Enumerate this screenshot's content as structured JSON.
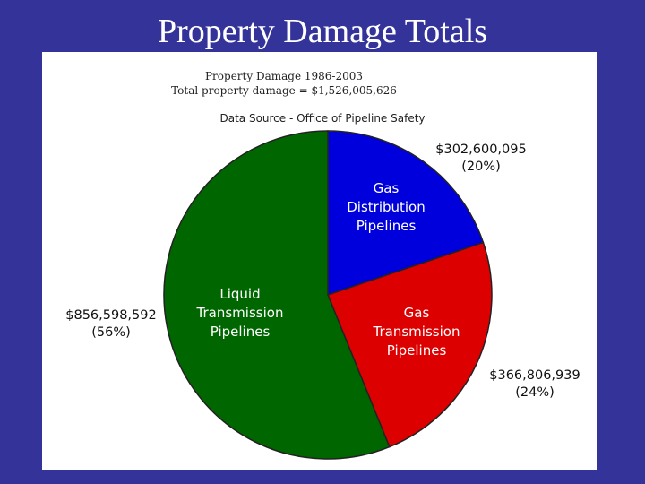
{
  "slide": {
    "title": "Property Damage Totals"
  },
  "chart_data": {
    "type": "pie",
    "header_lines": [
      "Property Damage 1986-2003",
      "Total property damage = $1,526,005,626"
    ],
    "source": "Data Source - Office of Pipeline Safety",
    "slices": [
      {
        "label_lines": [
          "Gas",
          "Distribution",
          "Pipelines"
        ],
        "value": 302600095,
        "value_text": "$302,600,095",
        "percent_text": "(20%)",
        "color": "#0000dd"
      },
      {
        "label_lines": [
          "Gas",
          "Transmission",
          "Pipelines"
        ],
        "value": 366806939,
        "value_text": "$366,806,939",
        "percent_text": "(24%)",
        "color": "#dd0000"
      },
      {
        "label_lines": [
          "Liquid",
          "Transmission",
          "Pipelines"
        ],
        "value": 856598592,
        "value_text": "$856,598,592",
        "percent_text": "(56%)",
        "color": "#006600"
      }
    ],
    "start_angle": "12 o'clock",
    "direction": "clockwise"
  }
}
